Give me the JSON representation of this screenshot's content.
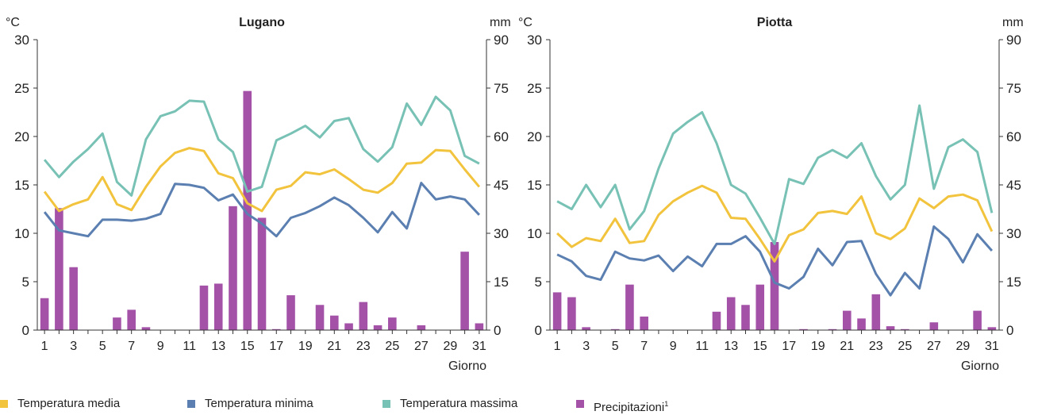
{
  "colors": {
    "temp_media": "#f2c33d",
    "temp_minima": "#5a7fb0",
    "temp_massima": "#78c1b5",
    "precipitazioni": "#a352a8",
    "axis": "#333333"
  },
  "legend": [
    {
      "key": "temp_media",
      "label": "Temperatura media",
      "sup": ""
    },
    {
      "key": "temp_minima",
      "label": "Temperatura minima",
      "sup": ""
    },
    {
      "key": "temp_massima",
      "label": "Temperatura massima",
      "sup": ""
    },
    {
      "key": "precipitazioni",
      "label": "Precipitazioni",
      "sup": "1"
    }
  ],
  "chart_data": [
    {
      "type": "bar+line",
      "title": "Lugano",
      "xlabel": "Giorno",
      "y_left_unit": "°C",
      "y_right_unit": "mm",
      "y_left_lim": [
        0,
        30
      ],
      "y_right_lim": [
        0,
        90
      ],
      "y_left_ticks": [
        0,
        5,
        10,
        15,
        20,
        25,
        30
      ],
      "y_right_ticks": [
        0,
        15,
        30,
        45,
        60,
        75,
        90
      ],
      "x_tick_labels": [
        "1",
        "3",
        "5",
        "7",
        "9",
        "11",
        "13",
        "15",
        "17",
        "19",
        "21",
        "23",
        "25",
        "27",
        "29",
        "31"
      ],
      "days": [
        1,
        2,
        3,
        4,
        5,
        6,
        7,
        8,
        9,
        10,
        11,
        12,
        13,
        14,
        15,
        16,
        17,
        18,
        19,
        20,
        21,
        22,
        23,
        24,
        25,
        26,
        27,
        28,
        29,
        30,
        31
      ],
      "series": [
        {
          "name": "Temperatura massima",
          "key": "temp_massima",
          "values": [
            17.6,
            15.8,
            17.4,
            18.7,
            20.3,
            15.3,
            13.9,
            19.7,
            22.1,
            22.6,
            23.7,
            23.6,
            19.7,
            18.4,
            14.3,
            14.8,
            19.6,
            20.3,
            21.1,
            19.9,
            21.6,
            21.9,
            18.7,
            17.4,
            18.9,
            23.4,
            21.2,
            24.1,
            22.7,
            18.0,
            17.2
          ]
        },
        {
          "name": "Temperatura media",
          "key": "temp_media",
          "values": [
            14.3,
            12.3,
            13.0,
            13.5,
            15.8,
            13.0,
            12.4,
            14.8,
            16.9,
            18.3,
            18.8,
            18.5,
            16.2,
            15.7,
            13.1,
            12.3,
            14.5,
            14.9,
            16.3,
            16.1,
            16.6,
            15.6,
            14.5,
            14.2,
            15.2,
            17.2,
            17.3,
            18.6,
            18.5,
            16.6,
            14.8
          ]
        },
        {
          "name": "Temperatura minima",
          "key": "temp_minima",
          "values": [
            12.2,
            10.3,
            10.0,
            9.7,
            11.4,
            11.4,
            11.3,
            11.5,
            12.0,
            15.1,
            15.0,
            14.7,
            13.4,
            14.0,
            12.0,
            11.0,
            9.7,
            11.6,
            12.1,
            12.8,
            13.7,
            12.9,
            11.6,
            10.1,
            12.2,
            10.5,
            15.2,
            13.5,
            13.8,
            13.5,
            11.9
          ]
        },
        {
          "name": "Precipitazioni",
          "key": "precipitazioni",
          "axis": "right",
          "values": [
            9.9,
            37.8,
            19.5,
            0,
            0,
            3.9,
            6.3,
            0.9,
            0,
            0,
            0,
            13.8,
            14.4,
            38.4,
            74.1,
            34.8,
            0.3,
            10.8,
            0,
            7.8,
            4.5,
            2.1,
            8.7,
            1.5,
            3.9,
            0,
            1.5,
            0,
            0,
            24.3,
            2.1
          ]
        }
      ]
    },
    {
      "type": "bar+line",
      "title": "Piotta",
      "xlabel": "Giorno",
      "y_left_unit": "°C",
      "y_right_unit": "mm",
      "y_left_lim": [
        0,
        30
      ],
      "y_right_lim": [
        0,
        90
      ],
      "y_left_ticks": [
        0,
        5,
        10,
        15,
        20,
        25,
        30
      ],
      "y_right_ticks": [
        0,
        15,
        30,
        45,
        60,
        75,
        90
      ],
      "x_tick_labels": [
        "1",
        "3",
        "5",
        "7",
        "9",
        "11",
        "13",
        "15",
        "17",
        "19",
        "21",
        "23",
        "25",
        "27",
        "29",
        "31"
      ],
      "days": [
        1,
        2,
        3,
        4,
        5,
        6,
        7,
        8,
        9,
        10,
        11,
        12,
        13,
        14,
        15,
        16,
        17,
        18,
        19,
        20,
        21,
        22,
        23,
        24,
        25,
        26,
        27,
        28,
        29,
        30,
        31
      ],
      "series": [
        {
          "name": "Temperatura massima",
          "key": "temp_massima",
          "values": [
            13.3,
            12.5,
            15.0,
            12.7,
            15.0,
            10.4,
            12.3,
            16.7,
            20.3,
            21.5,
            22.5,
            19.3,
            15.0,
            14.1,
            11.6,
            8.9,
            15.6,
            15.1,
            17.8,
            18.6,
            17.8,
            19.3,
            15.9,
            13.5,
            15.0,
            23.2,
            14.6,
            18.9,
            19.7,
            18.4,
            12.1
          ]
        },
        {
          "name": "Temperatura media",
          "key": "temp_media",
          "values": [
            10.0,
            8.6,
            9.5,
            9.2,
            11.5,
            9.0,
            9.2,
            11.9,
            13.3,
            14.2,
            14.9,
            14.2,
            11.6,
            11.5,
            9.4,
            7.1,
            9.8,
            10.4,
            12.1,
            12.3,
            12.0,
            13.8,
            10.0,
            9.4,
            10.5,
            13.6,
            12.6,
            13.8,
            14.0,
            13.4,
            10.2
          ]
        },
        {
          "name": "Temperatura minima",
          "key": "temp_minima",
          "values": [
            7.8,
            7.1,
            5.6,
            5.2,
            8.1,
            7.4,
            7.2,
            7.7,
            6.1,
            7.6,
            6.6,
            8.9,
            8.9,
            9.7,
            8.1,
            4.9,
            4.3,
            5.5,
            8.4,
            6.7,
            9.1,
            9.2,
            5.8,
            3.6,
            5.9,
            4.3,
            10.7,
            9.4,
            7.0,
            9.9,
            8.2
          ]
        },
        {
          "name": "Precipitazioni",
          "key": "precipitazioni",
          "axis": "right",
          "values": [
            11.7,
            10.2,
            0.9,
            0,
            0.3,
            14.1,
            4.2,
            0,
            0,
            0,
            0,
            5.7,
            10.2,
            7.8,
            14.1,
            27.3,
            0,
            0.3,
            0,
            0.3,
            6.0,
            3.6,
            11.1,
            1.2,
            0.3,
            0,
            2.4,
            0,
            0,
            6.0,
            0.9
          ]
        }
      ]
    }
  ]
}
